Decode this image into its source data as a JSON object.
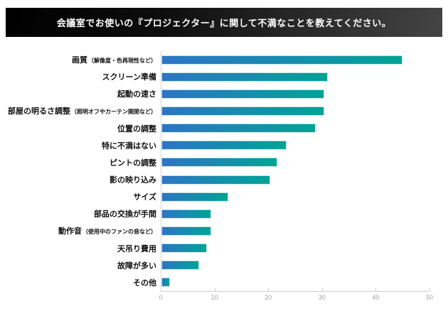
{
  "header": {
    "title": "会議室でお使いの『プロジェクター』に関して不満なことを教えてください。",
    "bg_from": "#000000",
    "bg_to": "#444444",
    "text_color": "#ffffff"
  },
  "chart_data": {
    "type": "bar",
    "orientation": "horizontal",
    "title": "会議室でお使いの『プロジェクター』に関して不満なことを教えてください。",
    "categories": [
      "画質",
      "スクリーン準備",
      "起動の速さ",
      "部屋の明るさ調整",
      "位置の調整",
      "特に不満はない",
      "ピントの調整",
      "影の映り込み",
      "サイズ",
      "部品の交換が手間",
      "動作音",
      "天吊り費用",
      "故障が多い",
      "その他"
    ],
    "category_notes": [
      "（解像度・色再現性など）",
      "",
      "",
      "（照明オフやカーテン開閉など）",
      "",
      "",
      "",
      "",
      "",
      "",
      "（使用中のファンの音など）",
      "",
      "",
      ""
    ],
    "values": [
      44.9,
      31.0,
      30.3,
      30.3,
      28.7,
      23.3,
      21.6,
      20.2,
      12.4,
      9.3,
      9.3,
      8.5,
      7.0,
      1.6
    ],
    "xlabel": "",
    "ylabel": "",
    "xlim": [
      0,
      50
    ],
    "x_ticks": [
      0,
      10,
      20,
      30,
      40,
      50
    ],
    "grid": false,
    "legend": false,
    "bar_gradient_start": "#2e74c6",
    "bar_gradient_end": "#00a496",
    "bar_border_color": "#c2e6e2",
    "axis_color": "#cccccc",
    "tick_label_color": "#a3a3a3"
  }
}
